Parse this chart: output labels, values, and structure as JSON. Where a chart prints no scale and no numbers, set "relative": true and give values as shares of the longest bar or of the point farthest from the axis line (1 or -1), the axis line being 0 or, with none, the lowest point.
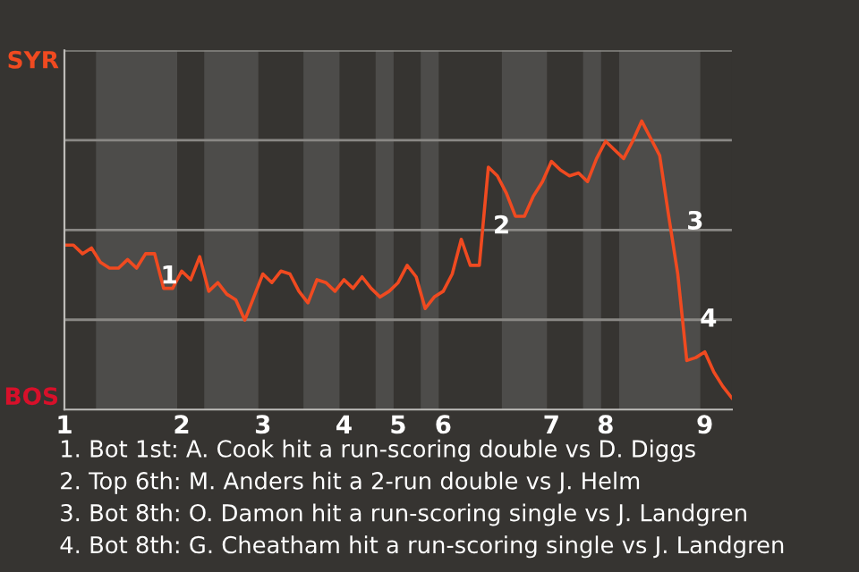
{
  "chart_data": {
    "type": "line",
    "relative": true,
    "categories": [
      "1",
      null,
      null,
      null,
      null,
      null,
      null,
      null,
      null,
      null,
      null,
      null,
      null,
      "2",
      null,
      null,
      null,
      null,
      null,
      null,
      null,
      null,
      "3",
      null,
      null,
      null,
      null,
      null,
      null,
      null,
      null,
      "4",
      null,
      null,
      null,
      null,
      null,
      "5",
      null,
      null,
      null,
      null,
      "6",
      null,
      null,
      null,
      null,
      null,
      null,
      null,
      null,
      null,
      null,
      null,
      "7",
      null,
      null,
      null,
      null,
      null,
      "8",
      null,
      null,
      null,
      null,
      null,
      null,
      null,
      null,
      null,
      null,
      "9",
      null,
      null,
      null
    ],
    "series": [
      {
        "color": "#f04a20",
        "values": [
          0.57,
          0.57,
          0.54,
          0.56,
          0.51,
          0.49,
          0.49,
          0.52,
          0.49,
          0.54,
          0.54,
          0.42,
          0.42,
          0.48,
          0.45,
          0.53,
          0.41,
          0.44,
          0.4,
          0.38,
          0.31,
          0.39,
          0.47,
          0.44,
          0.48,
          0.47,
          0.41,
          0.37,
          0.45,
          0.44,
          0.41,
          0.45,
          0.42,
          0.46,
          0.42,
          0.39,
          0.41,
          0.44,
          0.5,
          0.46,
          0.35,
          0.39,
          0.41,
          0.47,
          0.59,
          0.5,
          0.5,
          0.84,
          0.81,
          0.75,
          0.67,
          0.67,
          0.74,
          0.79,
          0.86,
          0.83,
          0.81,
          0.82,
          0.79,
          0.87,
          0.93,
          0.9,
          0.87,
          0.93,
          1.0,
          0.94,
          0.88,
          0.67,
          0.47,
          0.17,
          0.18,
          0.2,
          0.13,
          0.08,
          0.04
        ]
      }
    ],
    "grid": "y",
    "marker": "none",
    "line_style": "solid",
    "legend": false,
    "annotations": [
      "SYR",
      "BOS",
      "1",
      "2",
      "3",
      "4",
      "1. Bot 1st: A. Cook hit a run-scoring double vs D. Diggs",
      "2. Top 6th: M. Anders hit a 2-run double vs J. Helm",
      "3. Bot 8th: O. Damon hit a run-scoring single vs J. Landgren",
      "4. Bot 8th: G. Cheatham hit a run-scoring single vs J. Landgren"
    ]
  }
}
